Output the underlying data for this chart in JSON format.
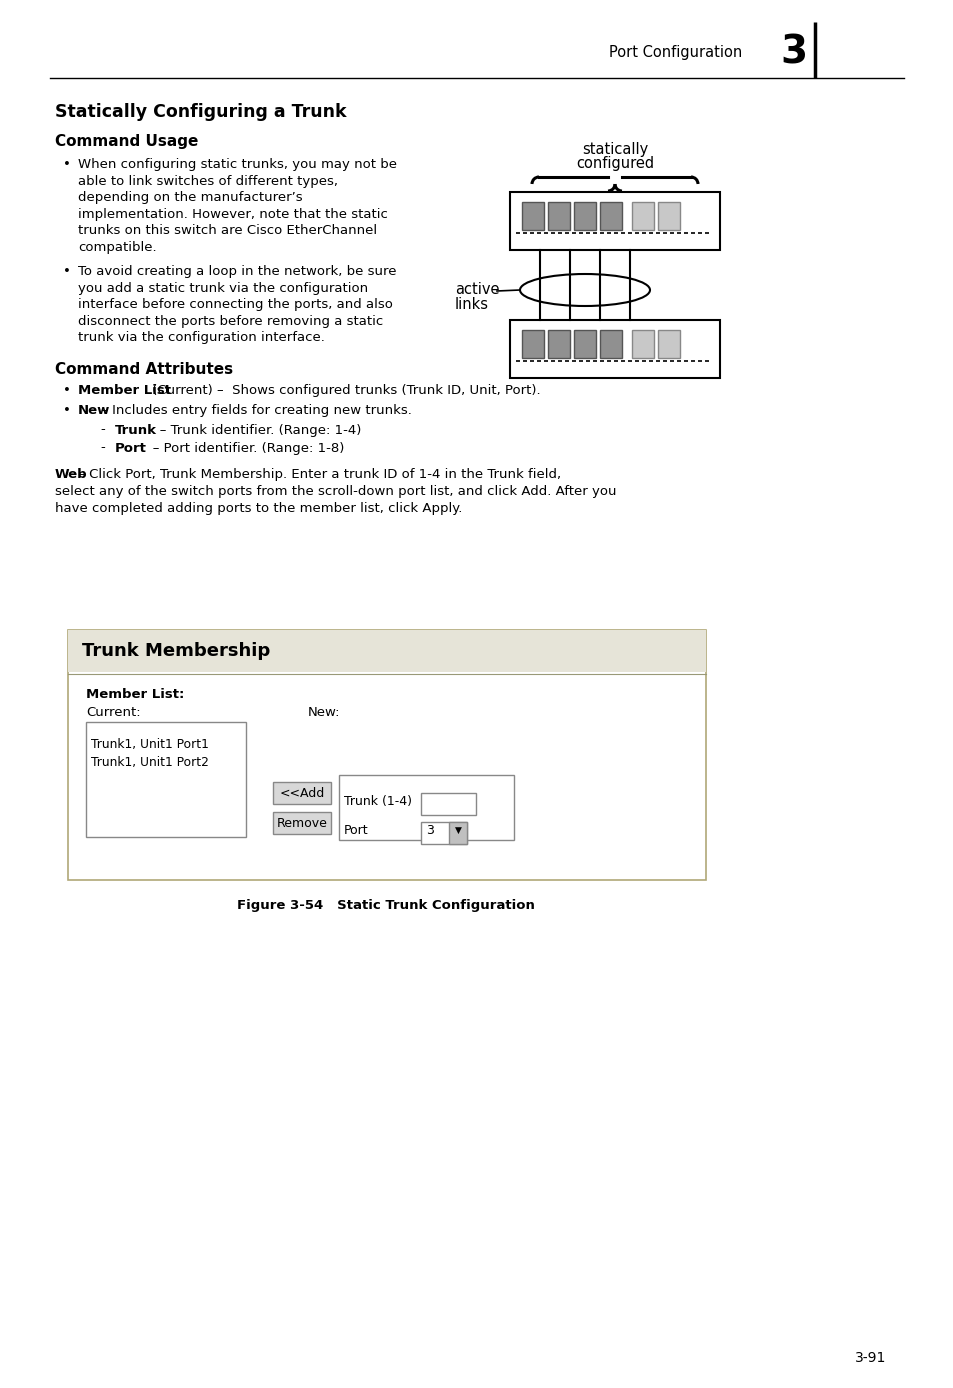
{
  "page_title": "Port Configuration",
  "chapter_num": "3",
  "section_title": "Statically Configuring a Trunk",
  "subsection1": "Command Usage",
  "bullet1_lines": [
    "When configuring static trunks, you may not be",
    "able to link switches of different types,",
    "depending on the manufacturer’s",
    "implementation. However, note that the static",
    "trunks on this switch are Cisco EtherChannel",
    "compatible."
  ],
  "bullet2_lines": [
    "To avoid creating a loop in the network, be sure",
    "you add a static trunk via the configuration",
    "interface before connecting the ports, and also",
    "disconnect the ports before removing a static",
    "trunk via the configuration interface."
  ],
  "subsection2": "Command Attributes",
  "attr1_bold": "Member List",
  "attr1_rest": " (Current) –  Shows configured trunks (Trunk ID, Unit, Port).",
  "attr2_bold": "New",
  "attr2_rest": " – Includes entry fields for creating new trunks.",
  "sub_attr1_bold": "Trunk",
  "sub_attr1_rest": " – Trunk identifier. (Range: 1-4)",
  "sub_attr2_bold": "Port",
  "sub_attr2_rest": " – Port identifier. (Range: 1-8)",
  "web_bold": "Web",
  "web_rest1": " – Click Port, Trunk Membership. Enter a trunk ID of 1-4 in the Trunk field,",
  "web_rest2": "select any of the switch ports from the scroll-down port list, and click Add. After you",
  "web_rest3": "have completed adding ports to the member list, click Apply.",
  "fig_title": "Figure 3-54   Static Trunk Configuration",
  "page_num": "3-91",
  "trunk_membership_title": "Trunk Membership",
  "member_list_label": "Member List:",
  "current_label": "Current:",
  "new_label": "New:",
  "current_items": [
    "Trunk1, Unit1 Port1",
    "Trunk1, Unit1 Port2"
  ],
  "add_btn": "<<Add",
  "remove_btn": "Remove",
  "trunk_label": "Trunk (1-4)",
  "port_label": "Port",
  "port_value": "3",
  "bg_color": "#ffffff",
  "text_color": "#000000"
}
